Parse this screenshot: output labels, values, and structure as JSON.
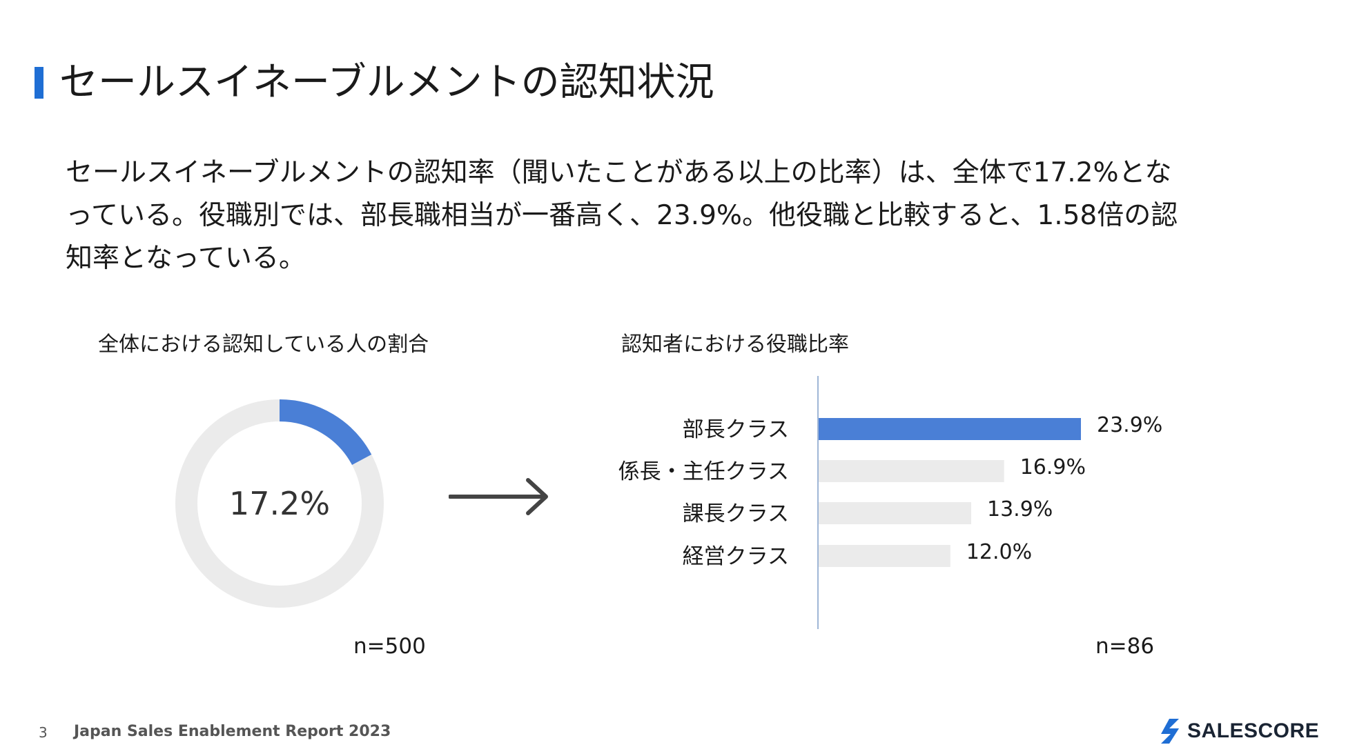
{
  "header": {
    "title": "セールスイネーブルメントの認知状況"
  },
  "summary": {
    "text": "セールスイネーブルメントの認知率（聞いたことがある以上の比率）は、全体で17.2%となっている。役職別では、部長職相当が一番高く、23.9%。他役職と比較すると、1.58倍の認知率となっている。"
  },
  "footer": {
    "page": "3",
    "report": "Japan Sales Enablement Report 2023",
    "logo_text": "SALESCORE"
  },
  "colors": {
    "accent": "#1f6ed4",
    "highlight_bar": "#4a7fd6",
    "muted_bar": "#ebebeb",
    "axis": "#9fb6d6"
  },
  "chart_data": [
    {
      "type": "pie",
      "title": "全体における認知している人の割合",
      "center_label": "17.2%",
      "values": [
        17.2,
        82.8
      ],
      "colors": [
        "#4a7fd6",
        "#ebebeb"
      ],
      "n_label": "n=500"
    },
    {
      "type": "bar",
      "orientation": "horizontal",
      "title": "認知者における役職比率",
      "categories": [
        "部長クラス",
        "係長・主任クラス",
        "課長クラス",
        "経営クラス"
      ],
      "values": [
        23.9,
        16.9,
        13.9,
        12.0
      ],
      "value_labels": [
        "23.9%",
        "16.9%",
        "13.9%",
        "12.0%"
      ],
      "highlight_index": 0,
      "xlim": [
        0,
        30
      ],
      "n_label": "n=86"
    }
  ]
}
